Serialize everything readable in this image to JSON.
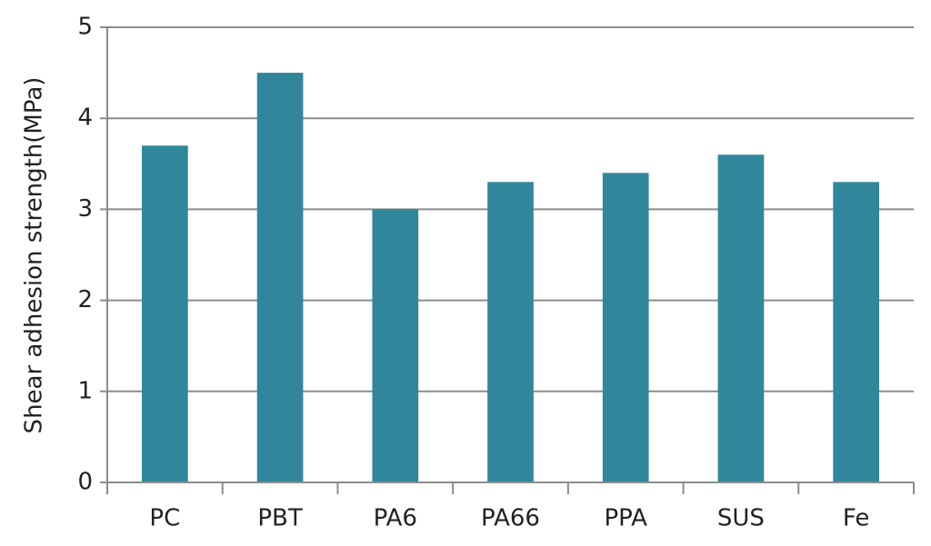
{
  "chart_data": {
    "type": "bar",
    "y_label": "Shear adhesion strength(MPa)",
    "categories": [
      "PC",
      "PBT",
      "PA6",
      "PA66",
      "PPA",
      "SUS",
      "Fe"
    ],
    "values": [
      3.7,
      4.5,
      3.0,
      3.3,
      3.4,
      3.6,
      3.3
    ],
    "color": "#31869b",
    "ylim": [
      0,
      5
    ],
    "yticks": [
      0,
      1,
      2,
      3,
      4,
      5
    ],
    "grid": true
  }
}
